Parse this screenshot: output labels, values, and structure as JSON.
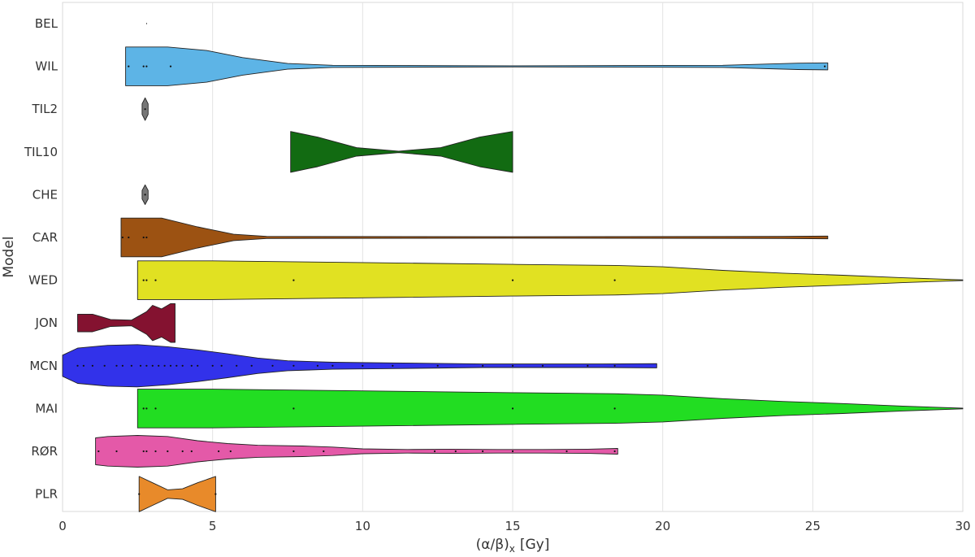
{
  "chart_data": {
    "type": "violin",
    "orientation": "horizontal",
    "xlabel": "(α/β)",
    "xlabel_subscript": "x",
    "xlabel_unit": "[Gy]",
    "ylabel": "Model",
    "xlim": [
      0,
      30
    ],
    "xticks": [
      "0",
      "5",
      "10",
      "15",
      "20",
      "25",
      "30"
    ],
    "grid": "vertical",
    "series": [
      {
        "name": "BEL",
        "color": "#888888",
        "profile": [
          [
            2.8,
            0.01
          ],
          [
            2.8,
            0.01
          ]
        ],
        "points": []
      },
      {
        "name": "WIL",
        "color": "#5db4e6",
        "profile": [
          [
            2.1,
            0.55
          ],
          [
            3.5,
            0.55
          ],
          [
            4.8,
            0.45
          ],
          [
            6,
            0.25
          ],
          [
            7.5,
            0.08
          ],
          [
            9,
            0.03
          ],
          [
            15,
            0.015
          ],
          [
            22,
            0.03
          ],
          [
            24.5,
            0.09
          ],
          [
            25.5,
            0.1
          ]
        ],
        "points": [
          2.2,
          2.7,
          2.8,
          3.6,
          25.4
        ]
      },
      {
        "name": "TIL2",
        "color": "#777777",
        "profile": [
          [
            2.65,
            0.15
          ],
          [
            2.75,
            0.32
          ],
          [
            2.85,
            0.15
          ]
        ],
        "points": [
          2.75
        ]
      },
      {
        "name": "TIL10",
        "color": "#126b12",
        "profile": [
          [
            7.6,
            0.58
          ],
          [
            8.5,
            0.42
          ],
          [
            9.8,
            0.12
          ],
          [
            11.2,
            0.02
          ],
          [
            12.6,
            0.12
          ],
          [
            13.9,
            0.42
          ],
          [
            15,
            0.58
          ]
        ],
        "points": []
      },
      {
        "name": "CHE",
        "color": "#777777",
        "profile": [
          [
            2.65,
            0.12
          ],
          [
            2.75,
            0.28
          ],
          [
            2.85,
            0.12
          ]
        ],
        "points": [
          2.75
        ]
      },
      {
        "name": "CAR",
        "color": "#9c5212",
        "profile": [
          [
            1.95,
            0.55
          ],
          [
            3.3,
            0.55
          ],
          [
            4.5,
            0.3
          ],
          [
            5.7,
            0.09
          ],
          [
            6.8,
            0.03
          ],
          [
            15,
            0.02
          ],
          [
            24,
            0.03
          ],
          [
            25.5,
            0.04
          ]
        ],
        "points": [
          2.0,
          2.2,
          2.7,
          2.8
        ]
      },
      {
        "name": "WED",
        "color": "#e1e122",
        "profile": [
          [
            2.5,
            0.55
          ],
          [
            5,
            0.55
          ],
          [
            10,
            0.5
          ],
          [
            15,
            0.45
          ],
          [
            18.4,
            0.42
          ],
          [
            20,
            0.38
          ],
          [
            22,
            0.28
          ],
          [
            24,
            0.2
          ],
          [
            26,
            0.14
          ],
          [
            28,
            0.07
          ],
          [
            30,
            0.01
          ]
        ],
        "points": [
          2.7,
          2.8,
          3.1,
          7.7,
          15.0,
          18.4
        ]
      },
      {
        "name": "JON",
        "color": "#841230",
        "profile": [
          [
            0.5,
            0.25
          ],
          [
            1.0,
            0.25
          ],
          [
            1.6,
            0.1
          ],
          [
            2.3,
            0.08
          ],
          [
            2.8,
            0.32
          ],
          [
            3.0,
            0.5
          ],
          [
            3.3,
            0.4
          ],
          [
            3.6,
            0.55
          ],
          [
            3.75,
            0.55
          ]
        ],
        "points": []
      },
      {
        "name": "MCN",
        "color": "#3232ea",
        "profile": [
          [
            0.0,
            0.3
          ],
          [
            0.5,
            0.5
          ],
          [
            1.5,
            0.58
          ],
          [
            2.5,
            0.6
          ],
          [
            3.5,
            0.54
          ],
          [
            4.5,
            0.45
          ],
          [
            5.5,
            0.34
          ],
          [
            6.5,
            0.22
          ],
          [
            7.5,
            0.14
          ],
          [
            9,
            0.1
          ],
          [
            11,
            0.08
          ],
          [
            14,
            0.05
          ],
          [
            18,
            0.05
          ],
          [
            19.8,
            0.06
          ]
        ],
        "points": [
          0.5,
          0.7,
          1.0,
          1.4,
          1.8,
          2.0,
          2.3,
          2.6,
          2.8,
          3.0,
          3.2,
          3.4,
          3.6,
          3.8,
          4.0,
          4.3,
          4.5,
          5.0,
          5.3,
          5.8,
          6.3,
          7.0,
          7.7,
          8.5,
          9.0,
          10.0,
          11.0,
          12.5,
          14.0,
          15.0,
          16.0,
          17.5,
          18.4
        ]
      },
      {
        "name": "MAI",
        "color": "#22dd22",
        "profile": [
          [
            2.5,
            0.55
          ],
          [
            5,
            0.55
          ],
          [
            10,
            0.5
          ],
          [
            15,
            0.45
          ],
          [
            18.4,
            0.42
          ],
          [
            20,
            0.38
          ],
          [
            22,
            0.28
          ],
          [
            24,
            0.2
          ],
          [
            26,
            0.14
          ],
          [
            28,
            0.07
          ],
          [
            30,
            0.01
          ]
        ],
        "points": [
          2.7,
          2.8,
          3.1,
          7.7,
          15.0,
          18.4
        ]
      },
      {
        "name": "RØR",
        "color": "#e459a8",
        "profile": [
          [
            1.1,
            0.38
          ],
          [
            1.5,
            0.42
          ],
          [
            2.5,
            0.45
          ],
          [
            3.5,
            0.42
          ],
          [
            4.5,
            0.3
          ],
          [
            5.5,
            0.22
          ],
          [
            6.5,
            0.17
          ],
          [
            8,
            0.15
          ],
          [
            9,
            0.12
          ],
          [
            10,
            0.07
          ],
          [
            11.5,
            0.05
          ],
          [
            13,
            0.06
          ],
          [
            14.5,
            0.05
          ],
          [
            16,
            0.05
          ],
          [
            17.5,
            0.06
          ],
          [
            18.5,
            0.08
          ]
        ],
        "points": [
          1.2,
          1.8,
          2.7,
          2.8,
          3.1,
          3.5,
          4.0,
          4.3,
          5.2,
          5.6,
          7.7,
          8.7,
          12.4,
          13.1,
          14.0,
          15.0,
          16.8,
          18.4
        ]
      },
      {
        "name": "PLR",
        "color": "#e88a2a",
        "profile": [
          [
            2.55,
            0.5
          ],
          [
            3.0,
            0.32
          ],
          [
            3.5,
            0.12
          ],
          [
            4.0,
            0.15
          ],
          [
            4.5,
            0.32
          ],
          [
            5.1,
            0.5
          ]
        ],
        "points": [
          2.55,
          5.1
        ]
      }
    ]
  }
}
